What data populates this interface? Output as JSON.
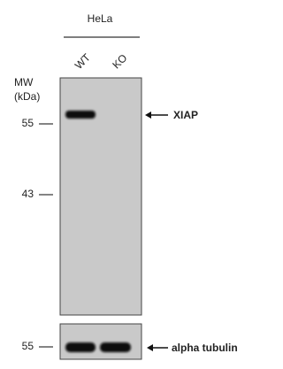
{
  "header": {
    "cell_line": "HeLa",
    "lanes": [
      "WT",
      "KO"
    ]
  },
  "marker_axis": {
    "title": "MW",
    "unit": "(kDa)",
    "markers": [
      55,
      43
    ]
  },
  "main_blot": {
    "target": "XIAP"
  },
  "loading_control": {
    "marker": 55,
    "target": "alpha tubulin"
  }
}
